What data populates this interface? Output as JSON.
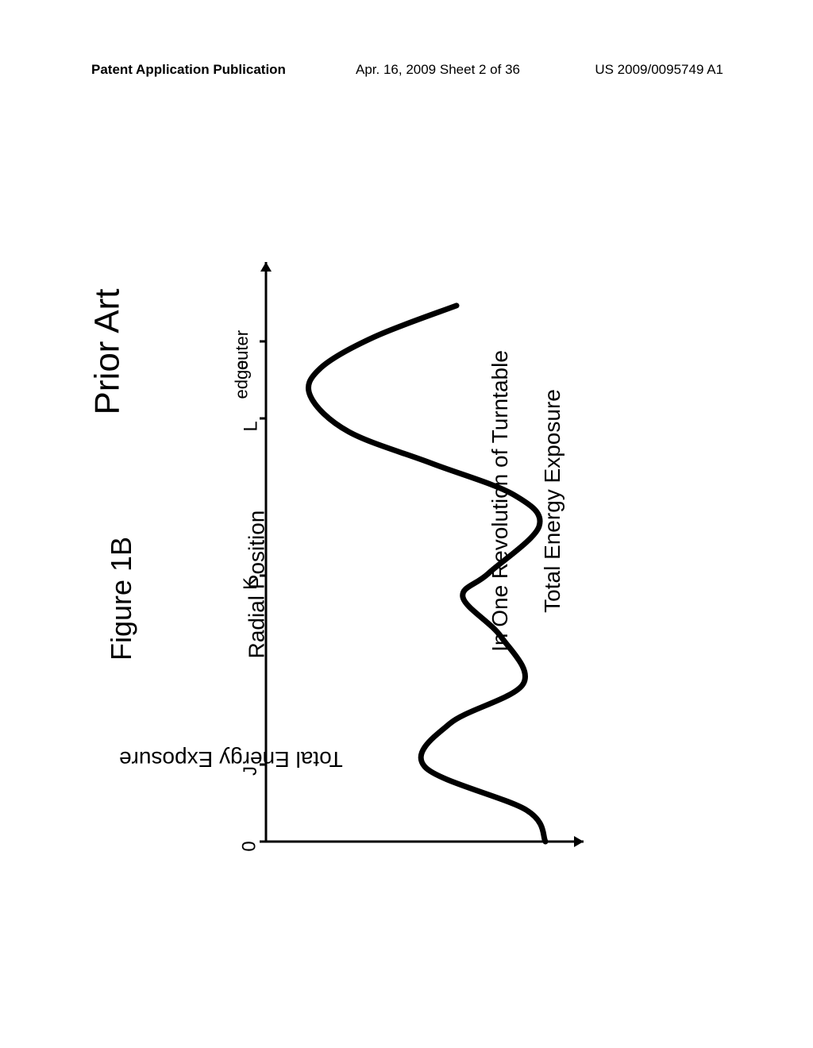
{
  "header": {
    "left": "Patent Application Publication",
    "center": "Apr. 16, 2009  Sheet 2 of 36",
    "right": "US 2009/0095749 A1"
  },
  "chart": {
    "type": "line",
    "title_line1": "Total Energy Exposure",
    "title_line2": "In One Revolution of Turntable",
    "y_axis_label": "Total Energy Exposure",
    "x_axis_label": "Radial Position",
    "figure_label": "Figure 1B",
    "prior_art_label": "Prior Art",
    "x_ticks": [
      "0",
      "J",
      "K",
      "L"
    ],
    "x_tick_outer_line1": "outer",
    "x_tick_outer_line2": "edge",
    "line_color": "#000000",
    "line_width": 7,
    "axis_color": "#000000",
    "axis_width": 3,
    "background_color": "#ffffff",
    "curve_points": [
      {
        "r": 0,
        "y": 440
      },
      {
        "r": 40,
        "y": 410
      },
      {
        "r": 95,
        "y": 250
      },
      {
        "r": 150,
        "y": 290
      },
      {
        "r": 200,
        "y": 405
      },
      {
        "r": 260,
        "y": 370
      },
      {
        "r": 310,
        "y": 310
      },
      {
        "r": 340,
        "y": 350
      },
      {
        "r": 400,
        "y": 430
      },
      {
        "r": 440,
        "y": 390
      },
      {
        "r": 480,
        "y": 260
      },
      {
        "r": 520,
        "y": 130
      },
      {
        "r": 565,
        "y": 70
      },
      {
        "r": 600,
        "y": 85
      },
      {
        "r": 640,
        "y": 170
      },
      {
        "r": 680,
        "y": 300
      }
    ]
  }
}
